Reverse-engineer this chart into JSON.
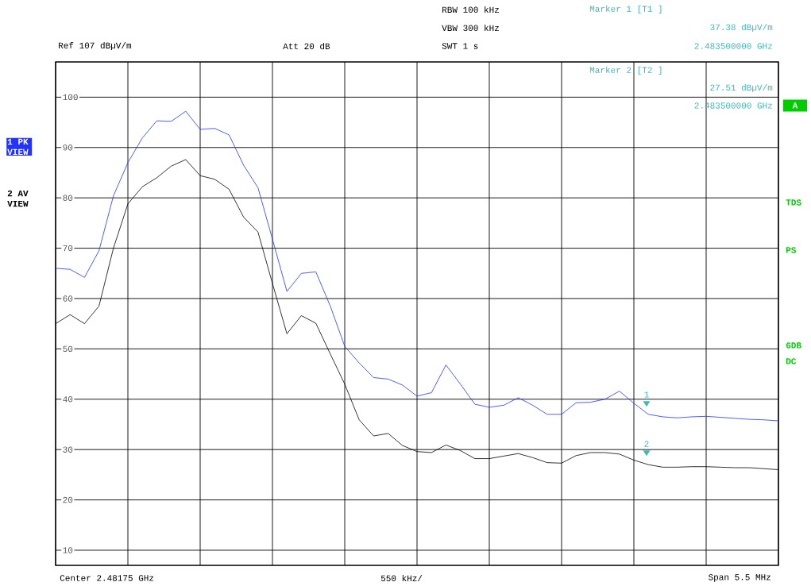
{
  "chart_data": {
    "type": "line",
    "categories": [
      null,
      null,
      null,
      null,
      null,
      null,
      null,
      null,
      null,
      null,
      null,
      null,
      null,
      null,
      null,
      null,
      null,
      null,
      null,
      null,
      null,
      null,
      null,
      null,
      null,
      null,
      null,
      null,
      null,
      null,
      null,
      null,
      null,
      null,
      null,
      null,
      null,
      null,
      null,
      null,
      null,
      null,
      null,
      null,
      null,
      null,
      null,
      null,
      null,
      null,
      null
    ],
    "ylim": [
      7,
      107
    ],
    "yticks": [
      10,
      20,
      30,
      40,
      50,
      60,
      70,
      80,
      90,
      100
    ],
    "tick_labels": "y",
    "grid": true,
    "marker": "none",
    "line_style": "solid",
    "series": [
      {
        "name": "1 PK VIEW",
        "color": "#2233ff",
        "values": [
          66.0,
          65.8,
          64.2,
          69.5,
          80.4,
          87.0,
          91.9,
          95.3,
          95.2,
          97.2,
          93.6,
          93.8,
          92.5,
          86.5,
          82.0,
          71.8,
          61.4,
          65.0,
          65.3,
          58.5,
          50.5,
          47.2,
          44.3,
          44.0,
          42.8,
          40.6,
          41.3,
          46.8,
          43.0,
          39.0,
          38.4,
          38.8,
          40.3,
          38.8,
          37.0,
          37.0,
          39.3,
          39.4,
          40.0,
          41.6,
          39.2,
          37.0,
          36.5,
          36.3,
          36.5,
          36.6,
          36.4,
          36.2,
          36.0,
          35.9,
          35.7
        ]
      },
      {
        "name": "2 AV VIEW",
        "color": "#000000",
        "values": [
          55.0,
          56.8,
          55.0,
          58.5,
          70.0,
          78.8,
          82.2,
          84.0,
          86.3,
          87.6,
          84.4,
          83.7,
          81.7,
          76.2,
          73.2,
          63.0,
          53.0,
          56.6,
          55.1,
          49.0,
          43.0,
          35.9,
          32.7,
          33.2,
          30.8,
          29.6,
          29.4,
          30.9,
          29.8,
          28.2,
          28.2,
          28.7,
          29.2,
          28.4,
          27.4,
          27.3,
          28.8,
          29.4,
          29.4,
          29.1,
          27.9,
          27.0,
          26.5,
          26.5,
          26.6,
          26.6,
          26.5,
          26.4,
          26.4,
          26.2,
          26.0
        ]
      }
    ],
    "annotations": [
      "RBW 100 kHz",
      "VBW 300 kHz",
      "SWT 1 s",
      "Ref 107 dBµV/m",
      "Att 20 dB",
      "Marker 1 [T1 ]",
      "37.38 dBµV/m",
      "2.483500000 GHz",
      "Marker 2 [T2 ]",
      "27.51 dBµV/m",
      "2.483500000 GHz",
      "Center 2.48175 GHz",
      "550 kHz/",
      "Span 5.5 MHz",
      "A",
      "TDS",
      "PS",
      "6DB",
      "DC",
      "1",
      "2"
    ]
  }
}
